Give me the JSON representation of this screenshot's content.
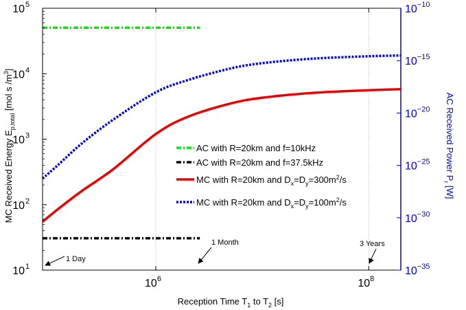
{
  "chart_data": {
    "type": "line",
    "xlabel": "Reception Time T",
    "xlabel_sub": "1",
    "xlabel_mid": " to T",
    "xlabel_sub2": "2",
    "xlabel_tail": " [s]",
    "ylabel_left": "MC Received Energy E",
    "ylabel_left_sub": "p,total",
    "ylabel_left_tail": " [mol s /m",
    "ylabel_left_sup": "3",
    "ylabel_left_end": "]",
    "ylabel_right": "AC Received Power P",
    "ylabel_right_sub": "r",
    "ylabel_right_tail": " [W]",
    "x_scale": "log",
    "x_range": [
      86400,
      200000000
    ],
    "y_left_scale": "log",
    "y_left_range": [
      10,
      100000
    ],
    "y_right_scale": "log",
    "y_right_range": [
      1e-35,
      1e-10
    ],
    "x_ticks": [
      {
        "value": 1000000,
        "base": "10",
        "exp": "6"
      },
      {
        "value": 100000000,
        "base": "10",
        "exp": "8"
      }
    ],
    "y_left_ticks": [
      {
        "value": 10,
        "base": "10",
        "exp": "1"
      },
      {
        "value": 100,
        "base": "10",
        "exp": "2"
      },
      {
        "value": 1000,
        "base": "10",
        "exp": "3"
      },
      {
        "value": 10000,
        "base": "10",
        "exp": "4"
      },
      {
        "value": 100000,
        "base": "10",
        "exp": "5"
      }
    ],
    "y_right_ticks": [
      {
        "value": 1e-35,
        "base": "10",
        "exp": "−35"
      },
      {
        "value": 1e-30,
        "base": "10",
        "exp": "−30"
      },
      {
        "value": 1e-25,
        "base": "10",
        "exp": "−25"
      },
      {
        "value": 1e-20,
        "base": "10",
        "exp": "−20"
      },
      {
        "value": 1e-15,
        "base": "10",
        "exp": "−15"
      },
      {
        "value": 1e-10,
        "base": "10",
        "exp": "−10"
      }
    ],
    "grid": "vertical dotted",
    "legend_position": "center-right",
    "series": [
      {
        "name": "AC with R=20km and f=10kHz",
        "axis": "right",
        "color": "#00ee00",
        "style": "dash-dot",
        "x": [
          86400,
          2592000
        ],
        "y": [
          1.4e-12,
          1.4e-12
        ]
      },
      {
        "name": "AC with R=20km and f=37.5kHz",
        "axis": "right",
        "color": "#000000",
        "style": "dash-dot",
        "x": [
          86400,
          2592000
        ],
        "y": [
          1.1e-32,
          1.1e-32
        ]
      },
      {
        "name": "MC with R=20km and D",
        "name_sub": "x",
        "name_mid": "=D",
        "name_sub2": "y",
        "name_tail": "=300m",
        "name_sup": "2",
        "name_end": "/s",
        "axis": "left",
        "color": "#ee0000",
        "style": "solid",
        "x": [
          86400,
          120000,
          200000,
          400000,
          1000000,
          2000000,
          5000000,
          10000000,
          30000000,
          100000000,
          200000000
        ],
        "y": [
          55,
          85,
          160,
          350,
          1200,
          2200,
          3500,
          4300,
          5100,
          5600,
          5800
        ]
      },
      {
        "name": "MC with R=20km and D",
        "name_sub": "x",
        "name_mid": "=D",
        "name_sub2": "y",
        "name_tail": "=100m",
        "name_sup": "2",
        "name_end": "/s",
        "axis": "left",
        "color": "#0000dd",
        "style": "dotted",
        "x": [
          86400,
          120000,
          200000,
          400000,
          1000000,
          2000000,
          5000000,
          10000000,
          30000000,
          100000000,
          200000000
        ],
        "y": [
          250,
          400,
          850,
          2000,
          5200,
          8000,
          12000,
          14500,
          17000,
          18500,
          19000
        ]
      }
    ],
    "annotations": [
      {
        "text": "1 Day",
        "x": 86400
      },
      {
        "text": "1 Month",
        "x": 2592000
      },
      {
        "text": "3 Years",
        "x": 94608000
      }
    ]
  }
}
